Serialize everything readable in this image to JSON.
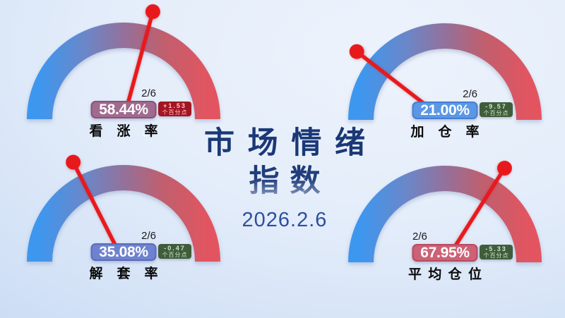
{
  "title": {
    "line1": "市场情绪",
    "line2": "指数",
    "date": "2026.2.6",
    "color": "#1b3876",
    "date_color": "#2d4f9c"
  },
  "arc": {
    "stops": [
      "#3e97ef",
      "#6a87c9",
      "#93719b",
      "#c05f6e",
      "#e25560"
    ],
    "offsets": [
      "0%",
      "27%",
      "50%",
      "73%",
      "100%"
    ]
  },
  "needle_color": "#e8191d",
  "gauges": [
    {
      "name": "看涨率",
      "label": "看涨率",
      "date": "2/6",
      "value": "58.44%",
      "value_num": 58.44,
      "change": "+1.53",
      "change_unit": "个百分点",
      "change_direction": "up",
      "date_align": "right",
      "value_box_bg": "#a06b8e",
      "value_box_border": "#8a5278",
      "badge_bg": "#a31522",
      "badge_text_color": "#ffc9d2"
    },
    {
      "name": "加仓率",
      "label": "加仓率",
      "date": "2/6",
      "value": "21.00%",
      "value_num": 21.0,
      "change": "-9.57",
      "change_unit": "个百分点",
      "change_direction": "down",
      "date_align": "right",
      "value_box_bg": "#5b97e5",
      "value_box_border": "#447fd2",
      "badge_bg": "#3f5d3b",
      "badge_text_color": "#cde6c6"
    },
    {
      "name": "解套率",
      "label": "解套率",
      "date": "2/6",
      "value": "35.08%",
      "value_num": 35.08,
      "change": "-0.47",
      "change_unit": "个百分点",
      "change_direction": "down",
      "date_align": "right",
      "value_box_bg": "#6e82cf",
      "value_box_border": "#5a6cbd",
      "badge_bg": "#3f5d3b",
      "badge_text_color": "#cde6c6"
    },
    {
      "name": "平均仓位",
      "label": "平均仓位",
      "date": "2/6",
      "value": "67.95%",
      "value_num": 67.95,
      "change": "-5.33",
      "change_unit": "个百分点",
      "change_direction": "down",
      "date_align": "left",
      "value_box_bg": "#cd6175",
      "value_box_border": "#b84a60",
      "badge_bg": "#3f5d3b",
      "badge_text_color": "#cde6c6"
    }
  ],
  "chart_data": {
    "type": "gauge",
    "title": "市场情绪指数",
    "date": "2026.2.6",
    "range": [
      0,
      100
    ],
    "gauges": [
      {
        "label": "看涨率",
        "value": 58.44,
        "change": 1.53,
        "unit": "个百分点",
        "date": "2/6"
      },
      {
        "label": "加仓率",
        "value": 21.0,
        "change": -9.57,
        "unit": "个百分点",
        "date": "2/6"
      },
      {
        "label": "解套率",
        "value": 35.08,
        "change": -0.47,
        "unit": "个百分点",
        "date": "2/6"
      },
      {
        "label": "平均仓位",
        "value": 67.95,
        "change": -5.33,
        "unit": "个百分点",
        "date": "2/6"
      }
    ]
  }
}
